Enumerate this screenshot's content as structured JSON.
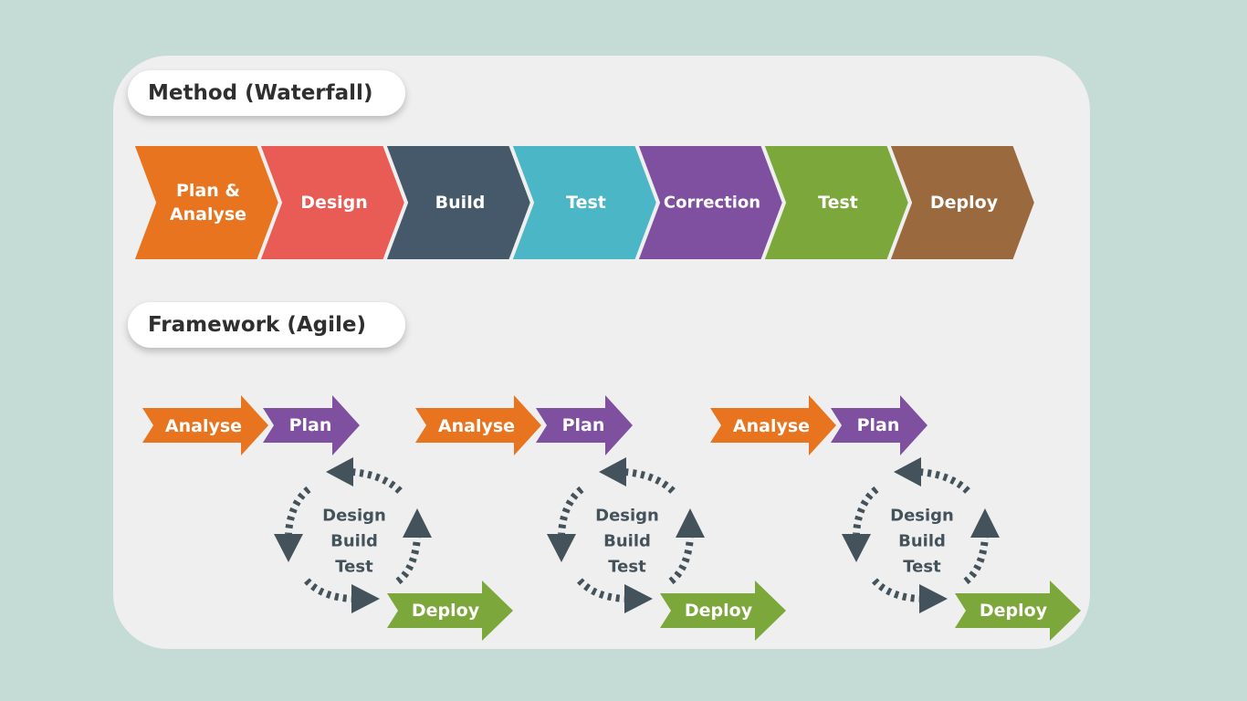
{
  "waterfall": {
    "title": "Method (Waterfall)",
    "steps": [
      {
        "lines": [
          "Plan &",
          "Analyse"
        ],
        "color": "#e8741f"
      },
      {
        "lines": [
          "Design"
        ],
        "color": "#e85c55"
      },
      {
        "lines": [
          "Build"
        ],
        "color": "#45596a"
      },
      {
        "lines": [
          "Test"
        ],
        "color": "#4bb7c6"
      },
      {
        "lines": [
          "Correction"
        ],
        "color": "#7f4fa0"
      },
      {
        "lines": [
          "Test"
        ],
        "color": "#7ca73b"
      },
      {
        "lines": [
          "Deploy"
        ],
        "color": "#9a6a3e"
      }
    ]
  },
  "agile": {
    "title": "Framework (Agile)",
    "analyse_label": "Analyse",
    "plan_label": "Plan",
    "cycle_lines": [
      "Design",
      "Build",
      "Test"
    ],
    "deploy_label": "Deploy",
    "iterations": 3
  },
  "colors": {
    "background": "#c5dbd6",
    "card": "#eeefee",
    "analyse": "#e8741f",
    "plan": "#7f4fa0",
    "deploy": "#7ca73b",
    "cycle_arrow": "#44525c",
    "cycle_text": "#44525c"
  }
}
